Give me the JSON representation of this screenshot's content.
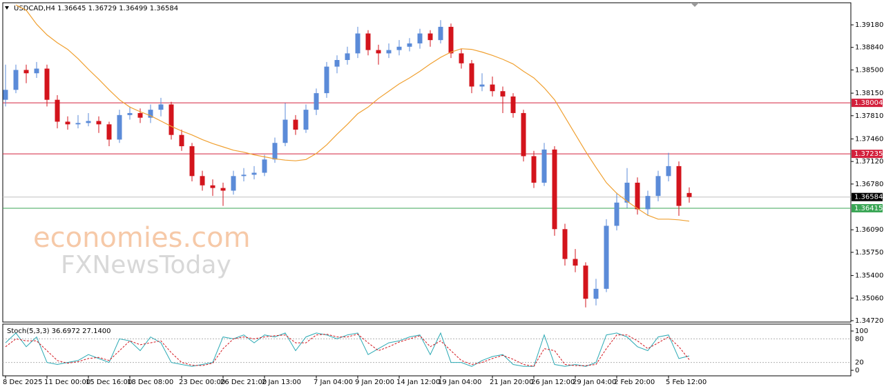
{
  "chart_data": {
    "type": "candlestick",
    "title": "USDCAD,H4  1.36645 1.36729 1.36499 1.36584",
    "watermark": [
      "economies.com",
      "FXNewsToday"
    ],
    "bull_color": "#5b8bd8",
    "bear_color": "#d3141c",
    "ylim": [
      1.34699,
      1.39513
    ],
    "yticks": [
      {
        "value": 1.3918,
        "label": "1.39180"
      },
      {
        "value": 1.3884,
        "label": "1.38840"
      },
      {
        "value": 1.385,
        "label": "1.38500"
      },
      {
        "value": 1.3815,
        "label": "1.38150"
      },
      {
        "value": 1.3781,
        "label": "1.37810"
      },
      {
        "value": 1.3746,
        "label": "1.37460"
      },
      {
        "value": 1.3712,
        "label": "1.37120"
      },
      {
        "value": 1.3678,
        "label": "1.36780"
      },
      {
        "value": 1.3609,
        "label": "1.36090"
      },
      {
        "value": 1.3575,
        "label": "1.35750"
      },
      {
        "value": 1.354,
        "label": "1.35400"
      },
      {
        "value": 1.3506,
        "label": "1.35060"
      },
      {
        "value": 1.3472,
        "label": "1.34720"
      }
    ],
    "levels": [
      {
        "value": 1.38004,
        "color": "#d3203c"
      },
      {
        "value": 1.37235,
        "color": "#d3203c"
      },
      {
        "value": 1.36584,
        "color": "#000000",
        "line_color": "#c0c0c0"
      },
      {
        "value": 1.36415,
        "color": "#3aa655"
      }
    ],
    "categories": [
      "8 Dec 2025",
      null,
      null,
      null,
      "11 Dec 00:00",
      null,
      null,
      null,
      "15 Dec 16:00",
      null,
      null,
      null,
      "18 Dec 08:00",
      null,
      null,
      null,
      null,
      "23 Dec 00:00",
      null,
      null,
      null,
      "26 Dec 21:00",
      null,
      null,
      null,
      "2 Jan 13:00",
      null,
      null,
      null,
      null,
      "7 Jan 04:00",
      null,
      null,
      null,
      "9 Jan 20:00",
      null,
      null,
      null,
      "14 Jan 12:00",
      null,
      null,
      null,
      "19 Jan 04:00",
      null,
      null,
      null,
      null,
      "21 Jan 20:00",
      null,
      null,
      null,
      "26 Jan 12:00",
      null,
      null,
      null,
      "29 Jan 04:00",
      null,
      null,
      null,
      "2 Feb 20:00",
      null,
      null,
      null,
      null,
      "5 Feb 12:00",
      null,
      null
    ],
    "candles": [
      [
        1.3805,
        1.3858,
        1.3795,
        1.382
      ],
      [
        1.382,
        1.3858,
        1.3815,
        1.385
      ],
      [
        1.385,
        1.3858,
        1.383,
        1.3845
      ],
      [
        1.3845,
        1.3862,
        1.3838,
        1.3852
      ],
      [
        1.3852,
        1.3858,
        1.3795,
        1.3805
      ],
      [
        1.3805,
        1.3812,
        1.3762,
        1.3772
      ],
      [
        1.3772,
        1.378,
        1.376,
        1.3768
      ],
      [
        1.3768,
        1.3782,
        1.3762,
        1.377
      ],
      [
        1.377,
        1.3785,
        1.3765,
        1.3773
      ],
      [
        1.3773,
        1.378,
        1.3755,
        1.3768
      ],
      [
        1.3768,
        1.3772,
        1.3735,
        1.3745
      ],
      [
        1.3745,
        1.379,
        1.374,
        1.3782
      ],
      [
        1.3782,
        1.3795,
        1.3775,
        1.3785
      ],
      [
        1.3785,
        1.3792,
        1.377,
        1.3778
      ],
      [
        1.3778,
        1.3798,
        1.377,
        1.379
      ],
      [
        1.379,
        1.3808,
        1.378,
        1.3798
      ],
      [
        1.3798,
        1.3802,
        1.3745,
        1.3752
      ],
      [
        1.3752,
        1.376,
        1.3728,
        1.3735
      ],
      [
        1.3735,
        1.374,
        1.3682,
        1.369
      ],
      [
        1.369,
        1.3698,
        1.3668,
        1.3676
      ],
      [
        1.3676,
        1.3685,
        1.366,
        1.3672
      ],
      [
        1.3672,
        1.368,
        1.3645,
        1.3668
      ],
      [
        1.3668,
        1.3698,
        1.3662,
        1.369
      ],
      [
        1.369,
        1.3702,
        1.3682,
        1.3692
      ],
      [
        1.3692,
        1.3705,
        1.3685,
        1.3695
      ],
      [
        1.3695,
        1.3722,
        1.369,
        1.3715
      ],
      [
        1.3715,
        1.3748,
        1.371,
        1.374
      ],
      [
        1.374,
        1.38,
        1.3735,
        1.3775
      ],
      [
        1.3775,
        1.3782,
        1.3752,
        1.376
      ],
      [
        1.376,
        1.3798,
        1.3755,
        1.379
      ],
      [
        1.379,
        1.3822,
        1.3782,
        1.3815
      ],
      [
        1.3815,
        1.3862,
        1.3808,
        1.3855
      ],
      [
        1.3855,
        1.3872,
        1.3845,
        1.3865
      ],
      [
        1.3865,
        1.3885,
        1.3858,
        1.3875
      ],
      [
        1.3875,
        1.3915,
        1.3868,
        1.3905
      ],
      [
        1.3905,
        1.391,
        1.3872,
        1.388
      ],
      [
        1.388,
        1.3888,
        1.3858,
        1.3875
      ],
      [
        1.3875,
        1.389,
        1.3868,
        1.388
      ],
      [
        1.388,
        1.3895,
        1.3872,
        1.3885
      ],
      [
        1.3885,
        1.3898,
        1.3878,
        1.389
      ],
      [
        1.389,
        1.3912,
        1.3882,
        1.3905
      ],
      [
        1.3905,
        1.391,
        1.3885,
        1.3895
      ],
      [
        1.3895,
        1.3925,
        1.389,
        1.3915
      ],
      [
        1.3915,
        1.392,
        1.3868,
        1.3875
      ],
      [
        1.3875,
        1.3882,
        1.3852,
        1.386
      ],
      [
        1.386,
        1.3865,
        1.3815,
        1.3825
      ],
      [
        1.3825,
        1.3845,
        1.3818,
        1.3828
      ],
      [
        1.3828,
        1.384,
        1.381,
        1.3818
      ],
      [
        1.3818,
        1.3825,
        1.3785,
        1.381
      ],
      [
        1.381,
        1.3815,
        1.3778,
        1.3785
      ],
      [
        1.3785,
        1.379,
        1.3712,
        1.372
      ],
      [
        1.372,
        1.3728,
        1.3672,
        1.368
      ],
      [
        1.368,
        1.374,
        1.3675,
        1.373
      ],
      [
        1.373,
        1.3735,
        1.36,
        1.361
      ],
      [
        1.361,
        1.3618,
        1.3555,
        1.3565
      ],
      [
        1.3565,
        1.358,
        1.3545,
        1.3555
      ],
      [
        1.3555,
        1.356,
        1.3492,
        1.3505
      ],
      [
        1.3505,
        1.3535,
        1.3495,
        1.352
      ],
      [
        1.352,
        1.3625,
        1.3515,
        1.3615
      ],
      [
        1.3615,
        1.3665,
        1.3608,
        1.365
      ],
      [
        1.365,
        1.3702,
        1.3642,
        1.368
      ],
      [
        1.368,
        1.3688,
        1.3632,
        1.364
      ],
      [
        1.364,
        1.3668,
        1.363,
        1.366
      ],
      [
        1.366,
        1.3698,
        1.3652,
        1.369
      ],
      [
        1.369,
        1.3725,
        1.3682,
        1.3705
      ],
      [
        1.3705,
        1.3712,
        1.363,
        1.3645
      ],
      [
        1.36645,
        1.36729,
        1.36499,
        1.36584
      ]
    ],
    "moving_average": {
      "color": "#f0a030",
      "values": [
        null,
        1.3948,
        1.394,
        1.3919,
        1.3903,
        1.3891,
        1.3881,
        1.3867,
        1.3851,
        1.3836,
        1.382,
        1.3805,
        1.3794,
        1.3787,
        1.3781,
        1.3773,
        1.3765,
        1.3758,
        1.3752,
        1.3745,
        1.3739,
        1.3734,
        1.3729,
        1.3726,
        1.3722,
        1.3719,
        1.3716,
        1.3714,
        1.3713,
        1.3715,
        1.3724,
        1.3737,
        1.3753,
        1.3768,
        1.3784,
        1.3794,
        1.3807,
        1.3818,
        1.3829,
        1.3838,
        1.3848,
        1.3859,
        1.3869,
        1.3877,
        1.3882,
        1.3881,
        1.3877,
        1.3872,
        1.3866,
        1.3859,
        1.3848,
        1.3838,
        1.3823,
        1.3805,
        1.3779,
        1.3753,
        1.3727,
        1.3703,
        1.368,
        1.3664,
        1.3652,
        1.3641,
        1.3631,
        1.3625,
        1.3625,
        1.3624,
        1.3622
      ]
    },
    "stoch": {
      "title": "Stoch(5,3,3) 36.6972 27.1400",
      "ylim": [
        0,
        100
      ],
      "yticks": [
        0,
        20,
        80,
        100
      ],
      "series": [
        {
          "color": "#2aa9b4",
          "dashed": false,
          "values": [
            70,
            95,
            60,
            85,
            20,
            15,
            20,
            25,
            40,
            30,
            20,
            80,
            75,
            50,
            85,
            70,
            20,
            15,
            10,
            15,
            20,
            85,
            80,
            90,
            70,
            90,
            85,
            95,
            50,
            85,
            95,
            90,
            80,
            90,
            95,
            40,
            55,
            70,
            75,
            85,
            90,
            40,
            95,
            20,
            20,
            10,
            25,
            35,
            40,
            15,
            10,
            10,
            90,
            15,
            10,
            15,
            10,
            20,
            90,
            95,
            85,
            60,
            50,
            85,
            90,
            30,
            36.6972
          ]
        },
        {
          "color": "#d3141c",
          "dashed": true,
          "values": [
            60,
            80,
            75,
            75,
            50,
            25,
            18,
            22,
            30,
            33,
            25,
            50,
            75,
            65,
            70,
            75,
            45,
            20,
            13,
            12,
            18,
            55,
            80,
            85,
            80,
            85,
            88,
            90,
            70,
            70,
            90,
            92,
            85,
            85,
            92,
            70,
            50,
            60,
            72,
            80,
            88,
            60,
            75,
            50,
            25,
            15,
            20,
            30,
            38,
            28,
            15,
            10,
            55,
            50,
            15,
            12,
            12,
            15,
            55,
            90,
            90,
            75,
            55,
            70,
            85,
            60,
            27.14
          ]
        }
      ]
    }
  }
}
